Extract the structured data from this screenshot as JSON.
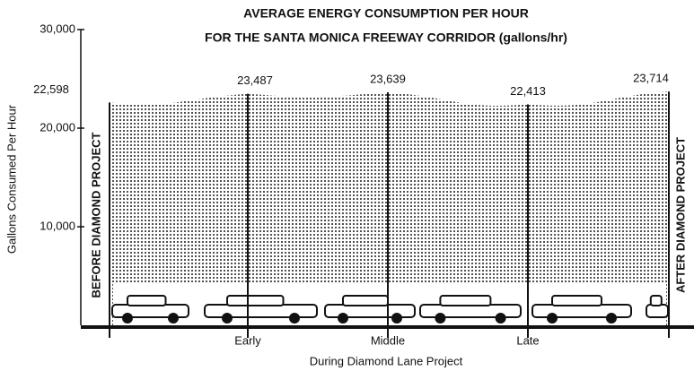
{
  "chart_data": {
    "type": "area",
    "title": "AVERAGE ENERGY CONSUMPTION PER HOUR",
    "subtitle": "FOR THE SANTA MONICA FREEWAY CORRIDOR (gallons/hr)",
    "y_label": "Gallons Consumed Per Hour",
    "x_label": "During Diamond Lane Project",
    "categories": [
      "BEFORE DIAMOND PROJECT",
      "Early",
      "Middle",
      "Late",
      "AFTER DIAMOND PROJECT"
    ],
    "values": [
      22598,
      23487,
      23639,
      22413,
      23714
    ],
    "value_labels": [
      "22,598",
      "23,487",
      "23,639",
      "22,413",
      "23,714"
    ],
    "color": "#111111",
    "ylim": [
      0,
      30000
    ],
    "yticks": [
      {
        "value": 10000,
        "label": "10,000"
      },
      {
        "value": 20000,
        "label": "20,000"
      },
      {
        "value": 30000,
        "label": "30,000"
      }
    ]
  }
}
